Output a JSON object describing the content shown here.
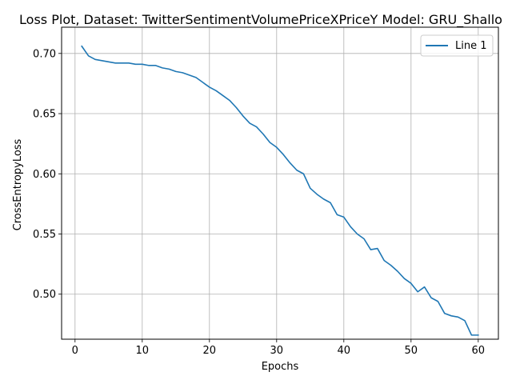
{
  "chart_data": {
    "type": "line",
    "title": "Loss Plot, Dataset: TwitterSentimentVolumePriceXPriceY Model: GRU_Shallo",
    "xlabel": "Epochs",
    "ylabel": "CrossEntropyLoss",
    "xlim": [
      -2,
      63
    ],
    "ylim": [
      0.4626,
      0.7218
    ],
    "xticks": [
      0,
      10,
      20,
      30,
      40,
      50,
      60
    ],
    "xtick_labels": [
      "0",
      "10",
      "20",
      "30",
      "40",
      "50",
      "60"
    ],
    "yticks": [
      0.5,
      0.55,
      0.6,
      0.65,
      0.7
    ],
    "ytick_labels": [
      "0.50",
      "0.55",
      "0.60",
      "0.65",
      "0.70"
    ],
    "grid": true,
    "legend_position": "top-right",
    "line_color": "#1f77b4",
    "series": [
      {
        "name": "Line 1",
        "color": "#1f77b4",
        "x": [
          1,
          2,
          3,
          4,
          5,
          6,
          7,
          8,
          9,
          10,
          11,
          12,
          13,
          14,
          15,
          16,
          17,
          18,
          19,
          20,
          21,
          22,
          23,
          24,
          25,
          26,
          27,
          28,
          29,
          30,
          31,
          32,
          33,
          34,
          35,
          36,
          37,
          38,
          39,
          40,
          41,
          42,
          43,
          44,
          45,
          46,
          47,
          48,
          49,
          50,
          51,
          52,
          53,
          54,
          55,
          56,
          57,
          58,
          59,
          60
        ],
        "y": [
          0.706,
          0.698,
          0.695,
          0.694,
          0.693,
          0.692,
          0.692,
          0.692,
          0.691,
          0.691,
          0.69,
          0.69,
          0.688,
          0.687,
          0.685,
          0.684,
          0.682,
          0.68,
          0.676,
          0.672,
          0.669,
          0.665,
          0.661,
          0.655,
          0.648,
          0.642,
          0.639,
          0.633,
          0.626,
          0.622,
          0.616,
          0.609,
          0.603,
          0.6,
          0.588,
          0.583,
          0.579,
          0.576,
          0.566,
          0.564,
          0.556,
          0.55,
          0.546,
          0.537,
          0.538,
          0.528,
          0.524,
          0.519,
          0.513,
          0.509,
          0.502,
          0.506,
          0.497,
          0.494,
          0.484,
          0.482,
          0.481,
          0.478,
          0.466,
          0.466
        ]
      }
    ]
  }
}
